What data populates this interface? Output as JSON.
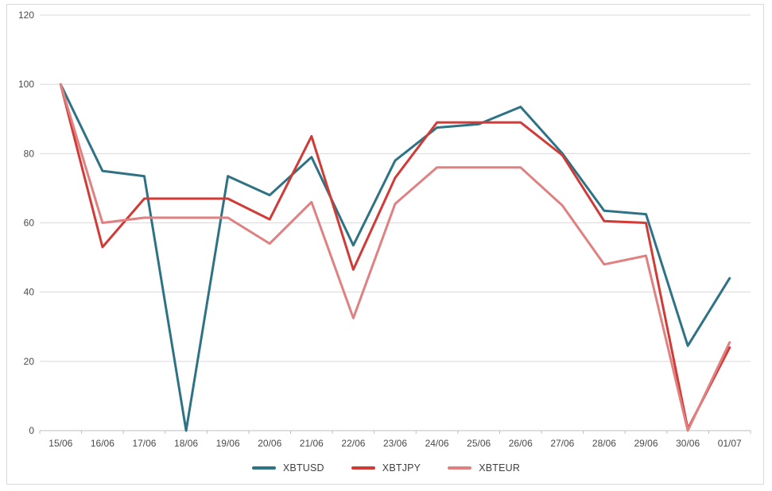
{
  "chart_data": {
    "type": "line",
    "title": "",
    "xlabel": "",
    "ylabel": "",
    "categories": [
      "15/06",
      "16/06",
      "17/06",
      "18/06",
      "19/06",
      "20/06",
      "21/06",
      "22/06",
      "23/06",
      "24/06",
      "25/06",
      "26/06",
      "27/06",
      "28/06",
      "29/06",
      "30/06",
      "01/07"
    ],
    "series": [
      {
        "name": "XBTUSD",
        "color": "#2e7385",
        "values": [
          100,
          75,
          73.5,
          0,
          73.5,
          68,
          79,
          53.5,
          78,
          87.5,
          88.5,
          93.5,
          80,
          63.5,
          62.5,
          24.5,
          44
        ]
      },
      {
        "name": "XBTJPY",
        "color": "#d23a36",
        "values": [
          100,
          53,
          67,
          67,
          67,
          61,
          85,
          46.5,
          73,
          89,
          89,
          89,
          79.5,
          60.5,
          60,
          0.5,
          24
        ]
      },
      {
        "name": "XBTEUR",
        "color": "#e08081",
        "values": [
          100,
          60,
          61.5,
          61.5,
          61.5,
          54,
          66,
          32.5,
          65.5,
          76,
          76,
          76,
          65,
          48,
          50.5,
          0,
          25.5
        ]
      }
    ],
    "ylim": [
      0,
      120
    ],
    "y_tick_step": 20,
    "y_tick_labels": [
      "0",
      "20",
      "40",
      "60",
      "80",
      "100",
      "120"
    ],
    "grid": "horizontal",
    "legend_position": "bottom"
  },
  "colors": {
    "background": "#ffffff",
    "frame_border": "#d9d9d9",
    "gridline": "#d9d9d9",
    "axis_line": "#bfbfbf",
    "tick_mark": "#bfbfbf",
    "tick_label": "#4a4a4a"
  }
}
